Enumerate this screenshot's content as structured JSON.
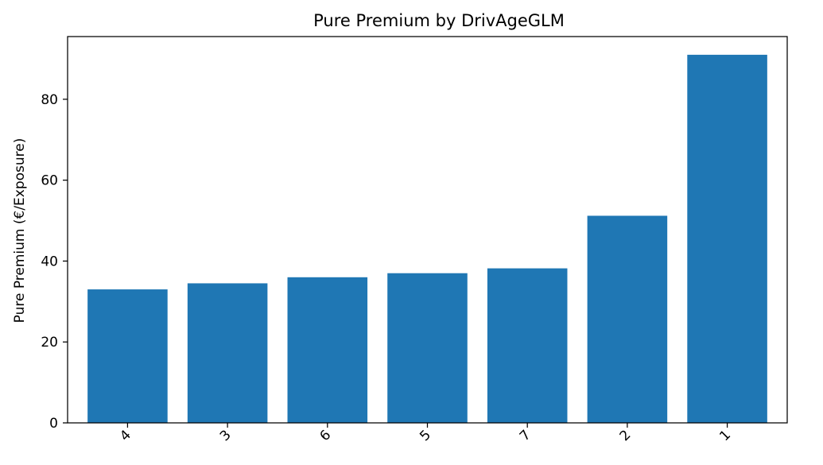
{
  "chart_data": {
    "type": "bar",
    "title": "Pure Premium by DrivAgeGLM",
    "xlabel": "",
    "ylabel": "Pure Premium (€/Exposure)",
    "categories": [
      "4",
      "3",
      "6",
      "5",
      "7",
      "2",
      "1"
    ],
    "values": [
      33.0,
      34.5,
      36.0,
      37.0,
      38.2,
      51.2,
      91.0
    ],
    "ylim": [
      0,
      95.5
    ],
    "yticks": [
      0,
      20,
      40,
      60,
      80
    ],
    "bar_color": "#1f77b4",
    "grid": false,
    "legend": "none"
  }
}
